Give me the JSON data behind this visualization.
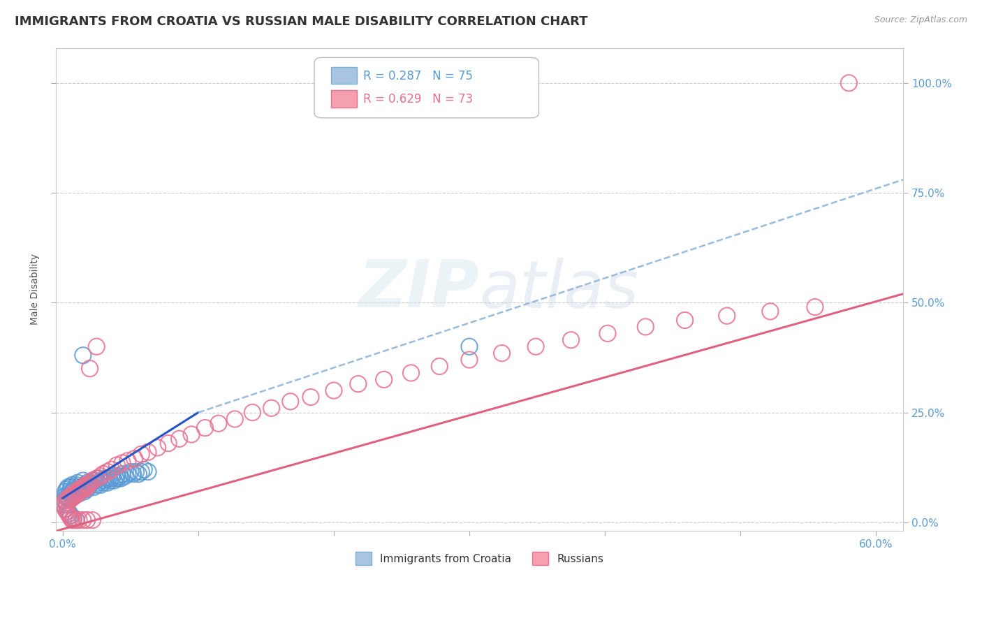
{
  "title": "IMMIGRANTS FROM CROATIA VS RUSSIAN MALE DISABILITY CORRELATION CHART",
  "source": "Source: ZipAtlas.com",
  "ylabel": "Male Disability",
  "xlim": [
    -0.005,
    0.62
  ],
  "ylim": [
    -0.02,
    1.08
  ],
  "x_ticks": [
    0.0,
    0.6
  ],
  "x_tick_labels": [
    "0.0%",
    "60.0%"
  ],
  "y_ticks": [
    0.0,
    0.25,
    0.5,
    0.75,
    1.0
  ],
  "y_tick_labels_right": [
    "0.0%",
    "25.0%",
    "50.0%",
    "75.0%",
    "100.0%"
  ],
  "tick_color": "#5b9bd5",
  "grid_color": "#cccccc",
  "background_color": "#ffffff",
  "title_fontsize": 13,
  "label_fontsize": 10,
  "tick_fontsize": 11,
  "blue_scatter_x": [
    0.001,
    0.002,
    0.002,
    0.003,
    0.003,
    0.004,
    0.004,
    0.005,
    0.005,
    0.006,
    0.006,
    0.007,
    0.007,
    0.008,
    0.008,
    0.009,
    0.009,
    0.01,
    0.01,
    0.011,
    0.011,
    0.012,
    0.012,
    0.013,
    0.014,
    0.015,
    0.015,
    0.016,
    0.017,
    0.018,
    0.018,
    0.019,
    0.02,
    0.021,
    0.022,
    0.023,
    0.024,
    0.025,
    0.026,
    0.027,
    0.028,
    0.029,
    0.03,
    0.031,
    0.032,
    0.033,
    0.034,
    0.035,
    0.036,
    0.037,
    0.038,
    0.039,
    0.04,
    0.041,
    0.042,
    0.043,
    0.044,
    0.046,
    0.048,
    0.05,
    0.052,
    0.054,
    0.056,
    0.058,
    0.06,
    0.063,
    0.002,
    0.003,
    0.004,
    0.005,
    0.006,
    0.008,
    0.01,
    0.015,
    0.3
  ],
  "blue_scatter_y": [
    0.05,
    0.06,
    0.07,
    0.055,
    0.075,
    0.06,
    0.08,
    0.055,
    0.07,
    0.065,
    0.08,
    0.07,
    0.085,
    0.06,
    0.075,
    0.065,
    0.08,
    0.07,
    0.085,
    0.075,
    0.09,
    0.065,
    0.08,
    0.07,
    0.075,
    0.08,
    0.095,
    0.07,
    0.085,
    0.075,
    0.09,
    0.08,
    0.085,
    0.09,
    0.095,
    0.08,
    0.095,
    0.085,
    0.09,
    0.1,
    0.085,
    0.095,
    0.09,
    0.095,
    0.1,
    0.09,
    0.1,
    0.095,
    0.1,
    0.105,
    0.095,
    0.1,
    0.105,
    0.1,
    0.105,
    0.1,
    0.11,
    0.105,
    0.11,
    0.115,
    0.11,
    0.115,
    0.11,
    0.115,
    0.12,
    0.115,
    0.03,
    0.04,
    0.025,
    0.02,
    0.015,
    0.01,
    0.005,
    0.38,
    0.4
  ],
  "pink_scatter_x": [
    0.001,
    0.002,
    0.003,
    0.004,
    0.005,
    0.006,
    0.007,
    0.008,
    0.009,
    0.01,
    0.011,
    0.012,
    0.013,
    0.014,
    0.015,
    0.016,
    0.017,
    0.018,
    0.019,
    0.02,
    0.022,
    0.025,
    0.028,
    0.03,
    0.033,
    0.036,
    0.04,
    0.044,
    0.048,
    0.053,
    0.058,
    0.063,
    0.07,
    0.078,
    0.086,
    0.095,
    0.105,
    0.115,
    0.127,
    0.14,
    0.154,
    0.168,
    0.183,
    0.2,
    0.218,
    0.237,
    0.257,
    0.278,
    0.3,
    0.324,
    0.349,
    0.375,
    0.402,
    0.43,
    0.459,
    0.49,
    0.522,
    0.555,
    0.002,
    0.003,
    0.004,
    0.005,
    0.006,
    0.007,
    0.008,
    0.01,
    0.012,
    0.015,
    0.018,
    0.022,
    0.025,
    0.02,
    0.58
  ],
  "pink_scatter_y": [
    0.04,
    0.05,
    0.045,
    0.055,
    0.05,
    0.06,
    0.055,
    0.065,
    0.06,
    0.07,
    0.065,
    0.075,
    0.07,
    0.075,
    0.08,
    0.075,
    0.085,
    0.08,
    0.085,
    0.09,
    0.095,
    0.1,
    0.105,
    0.11,
    0.115,
    0.12,
    0.13,
    0.135,
    0.14,
    0.145,
    0.155,
    0.16,
    0.17,
    0.18,
    0.19,
    0.2,
    0.215,
    0.225,
    0.235,
    0.25,
    0.26,
    0.275,
    0.285,
    0.3,
    0.315,
    0.325,
    0.34,
    0.355,
    0.37,
    0.385,
    0.4,
    0.415,
    0.43,
    0.445,
    0.46,
    0.47,
    0.48,
    0.49,
    0.03,
    0.025,
    0.02,
    0.015,
    0.01,
    0.005,
    0.005,
    0.005,
    0.005,
    0.005,
    0.005,
    0.005,
    0.4,
    0.35,
    1.0
  ],
  "blue_solid_line_x": [
    0.0,
    0.1
  ],
  "blue_solid_line_y": [
    0.055,
    0.25
  ],
  "blue_dashed_line_x": [
    0.1,
    0.62
  ],
  "blue_dashed_line_y": [
    0.25,
    0.78
  ],
  "pink_line_x": [
    -0.005,
    0.62
  ],
  "pink_line_y": [
    -0.02,
    0.52
  ],
  "blue_line_color": "#2255cc",
  "blue_dash_color": "#99bbdd",
  "pink_line_color": "#e06080"
}
